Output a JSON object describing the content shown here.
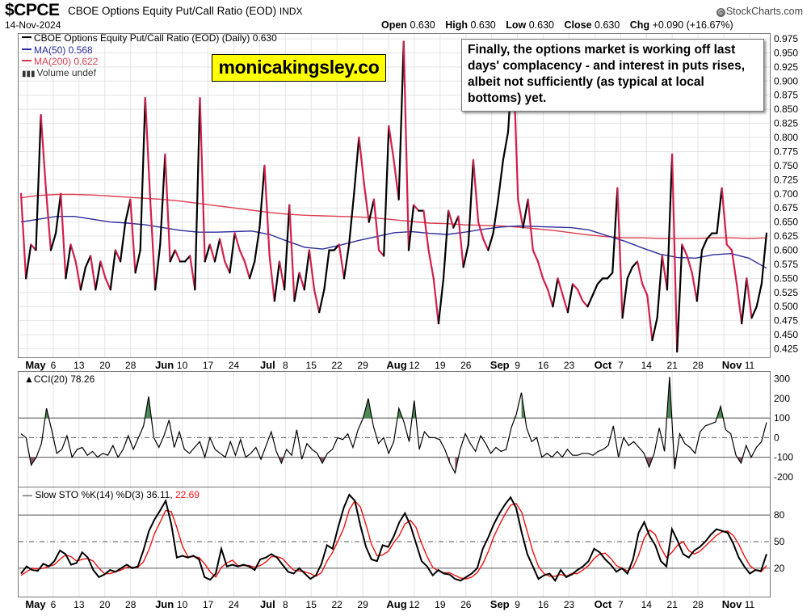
{
  "header": {
    "symbol": "$CPCE",
    "name": "CBOE Options Equity Put/Call Ratio (EOD)",
    "exchange": "INDX",
    "date": "14-Nov-2024",
    "open_label": "Open",
    "open": "0.630",
    "high_label": "High",
    "high": "0.630",
    "low_label": "Low",
    "low": "0.630",
    "close_label": "Close",
    "close": "0.630",
    "chg_label": "Chg",
    "chg": "+0.090 (+16.67%)",
    "brand": "StockCharts.com",
    "brand_mark": "©"
  },
  "legend": {
    "main": "CBOE Options Equity Put/Call Ratio (EOD) (Daily) 0.630",
    "ma50": "MA(50) 0.568",
    "ma200": "MA(200) 0.622",
    "volume": "Volume undef"
  },
  "watermark": "monicakingsley.co",
  "annotation": "Finally, the options market is working off last days' complacency - and interest in puts rises, albeit not sufficiently (as typical at local bottoms) yet.",
  "colors": {
    "up": "#000000",
    "down": "#d21e4b",
    "ma50": "#2d2d9b",
    "ma200": "#dc3c50",
    "fill_pos": "#4e8a58",
    "fill_neg": "#8b5a68",
    "d_line": "#ee1111"
  },
  "chart_data": [
    {
      "type": "line",
      "title": "CBOE Options Equity Put/Call Ratio (EOD) (Daily)",
      "ylim": [
        0.41,
        0.985
      ],
      "yticks": [
        "0.425",
        "0.450",
        "0.475",
        "0.500",
        "0.525",
        "0.550",
        "0.575",
        "0.600",
        "0.625",
        "0.650",
        "0.675",
        "0.700",
        "0.725",
        "0.750",
        "0.775",
        "0.800",
        "0.825",
        "0.850",
        "0.875",
        "0.900",
        "0.925",
        "0.950",
        "0.975"
      ],
      "x_labels": [
        "May",
        "6",
        "13",
        "20",
        "28",
        "Jun",
        "10",
        "17",
        "24",
        "Jul",
        "8",
        "15",
        "22",
        "29",
        "Aug",
        "12",
        "19",
        "26",
        "Sep",
        "9",
        "16",
        "23",
        "Oct",
        "7",
        "14",
        "21",
        "28",
        "Nov",
        "11"
      ],
      "values": [
        0.7,
        0.55,
        0.61,
        0.6,
        0.84,
        0.71,
        0.6,
        0.63,
        0.7,
        0.55,
        0.61,
        0.58,
        0.53,
        0.57,
        0.59,
        0.53,
        0.58,
        0.55,
        0.53,
        0.6,
        0.58,
        0.65,
        0.69,
        0.56,
        0.6,
        0.87,
        0.69,
        0.53,
        0.61,
        0.77,
        0.58,
        0.6,
        0.58,
        0.58,
        0.59,
        0.53,
        0.87,
        0.58,
        0.61,
        0.58,
        0.62,
        0.58,
        0.56,
        0.63,
        0.6,
        0.58,
        0.55,
        0.58,
        0.64,
        0.75,
        0.59,
        0.51,
        0.58,
        0.53,
        0.68,
        0.51,
        0.56,
        0.53,
        0.6,
        0.53,
        0.49,
        0.53,
        0.6,
        0.6,
        0.61,
        0.55,
        0.61,
        0.7,
        0.8,
        0.72,
        0.65,
        0.69,
        0.6,
        0.59,
        0.82,
        0.76,
        0.69,
        0.97,
        0.6,
        0.68,
        0.67,
        0.67,
        0.6,
        0.55,
        0.47,
        0.55,
        0.67,
        0.64,
        0.66,
        0.57,
        0.61,
        0.76,
        0.65,
        0.62,
        0.6,
        0.63,
        0.69,
        0.76,
        0.81,
        0.95,
        0.69,
        0.64,
        0.69,
        0.6,
        0.58,
        0.55,
        0.53,
        0.5,
        0.55,
        0.52,
        0.49,
        0.54,
        0.53,
        0.51,
        0.5,
        0.52,
        0.54,
        0.55,
        0.55,
        0.56,
        0.71,
        0.48,
        0.55,
        0.57,
        0.58,
        0.54,
        0.52,
        0.44,
        0.48,
        0.59,
        0.53,
        0.77,
        0.42,
        0.61,
        0.59,
        0.56,
        0.51,
        0.6,
        0.62,
        0.63,
        0.63,
        0.71,
        0.61,
        0.6,
        0.54,
        0.47,
        0.55,
        0.48,
        0.5,
        0.54,
        0.63
      ],
      "ma50": [
        0.65,
        0.655,
        0.66,
        0.66,
        0.655,
        0.65,
        0.648,
        0.645,
        0.64,
        0.635,
        0.632,
        0.632,
        0.633,
        0.634,
        0.628,
        0.616,
        0.605,
        0.602,
        0.609,
        0.617,
        0.624,
        0.631,
        0.633,
        0.63,
        0.628,
        0.632,
        0.637,
        0.641,
        0.643,
        0.642,
        0.641,
        0.64,
        0.636,
        0.626,
        0.616,
        0.604,
        0.593,
        0.587,
        0.586,
        0.592,
        0.594,
        0.586,
        0.568
      ],
      "ma200": [
        0.693,
        0.697,
        0.699,
        0.699,
        0.698,
        0.696,
        0.694,
        0.692,
        0.69,
        0.687,
        0.683,
        0.679,
        0.675,
        0.671,
        0.667,
        0.664,
        0.662,
        0.661,
        0.66,
        0.659,
        0.657,
        0.654,
        0.651,
        0.648,
        0.647,
        0.645,
        0.644,
        0.643,
        0.641,
        0.638,
        0.635,
        0.631,
        0.627,
        0.624,
        0.622,
        0.622,
        0.621,
        0.621,
        0.621,
        0.622,
        0.622,
        0.621,
        0.622
      ]
    },
    {
      "type": "line",
      "title": "CCI(20)",
      "label": "CCI(20) 78.26",
      "ylim": [
        -250,
        340
      ],
      "yticks": [
        "300",
        "200",
        "100",
        "0",
        "-100",
        "-200"
      ],
      "values": [
        20,
        0,
        -140,
        -100,
        -30,
        150,
        40,
        -80,
        -60,
        10,
        -100,
        -60,
        -50,
        -90,
        -70,
        -100,
        -80,
        -90,
        -40,
        -100,
        -60,
        10,
        -60,
        0,
        60,
        210,
        0,
        -50,
        10,
        90,
        -50,
        30,
        -60,
        -80,
        -50,
        -20,
        -100,
        0,
        -60,
        -80,
        -100,
        -20,
        -90,
        -10,
        -100,
        -80,
        -50,
        -110,
        -40,
        30,
        -70,
        -130,
        -60,
        -90,
        40,
        -110,
        -30,
        -60,
        -80,
        -130,
        -80,
        -60,
        0,
        -10,
        20,
        -50,
        40,
        100,
        200,
        60,
        -30,
        0,
        -80,
        -20,
        150,
        80,
        -20,
        190,
        -60,
        30,
        0,
        0,
        -10,
        -60,
        -130,
        -180,
        -60,
        20,
        -30,
        -70,
        10,
        -30,
        -80,
        -50,
        -70,
        -60,
        50,
        120,
        230,
        50,
        -20,
        0,
        -100,
        -80,
        -100,
        -70,
        -100,
        -60,
        -90,
        -90,
        -80,
        -80,
        -90,
        -70,
        -60,
        -40,
        60,
        -100,
        0,
        -40,
        -20,
        -50,
        -80,
        -150,
        -80,
        50,
        -70,
        310,
        -160,
        20,
        -30,
        -50,
        -80,
        30,
        60,
        70,
        80,
        160,
        40,
        20,
        -90,
        -130,
        -40,
        -100,
        -50,
        -20,
        78
      ],
      "hlines": [
        100,
        0,
        -100
      ]
    },
    {
      "type": "line",
      "title": "Slow STO %K(14) %D(3)",
      "label_prefix": "Slow STO %K(14) %D(3)",
      "k_value": "36.11",
      "d_value": "22.69",
      "ylim": [
        -12,
        112
      ],
      "yticks": [
        "80",
        "50",
        "20"
      ],
      "k": [
        14,
        22,
        18,
        17,
        25,
        22,
        28,
        40,
        36,
        24,
        26,
        38,
        32,
        18,
        10,
        13,
        18,
        16,
        20,
        24,
        20,
        22,
        40,
        62,
        75,
        85,
        96,
        70,
        32,
        34,
        32,
        34,
        30,
        10,
        7,
        14,
        42,
        22,
        24,
        22,
        24,
        22,
        18,
        30,
        32,
        36,
        32,
        24,
        16,
        14,
        20,
        14,
        8,
        12,
        25,
        46,
        42,
        66,
        88,
        103,
        96,
        68,
        44,
        30,
        28,
        46,
        44,
        56,
        72,
        82,
        68,
        48,
        28,
        22,
        12,
        18,
        14,
        13,
        8,
        6,
        10,
        14,
        20,
        42,
        55,
        70,
        82,
        92,
        100,
        88,
        60,
        36,
        22,
        8,
        12,
        14,
        6,
        18,
        10,
        13,
        18,
        22,
        28,
        42,
        38,
        30,
        24,
        16,
        20,
        14,
        30,
        60,
        72,
        56,
        46,
        28,
        22,
        64,
        51,
        36,
        32,
        40,
        44,
        50,
        58,
        64,
        62,
        60,
        48,
        32,
        22,
        14,
        18,
        17,
        36
      ],
      "d": [
        12,
        16,
        20,
        19,
        20,
        22,
        24,
        30,
        35,
        33,
        28,
        30,
        31,
        28,
        20,
        14,
        14,
        16,
        18,
        21,
        21,
        21,
        27,
        41,
        59,
        72,
        85,
        84,
        66,
        45,
        33,
        33,
        32,
        25,
        16,
        10,
        21,
        26,
        29,
        23,
        23,
        23,
        21,
        23,
        27,
        33,
        33,
        31,
        24,
        18,
        17,
        16,
        14,
        11,
        15,
        28,
        38,
        51,
        65,
        86,
        96,
        89,
        69,
        47,
        34,
        35,
        39,
        49,
        57,
        70,
        74,
        66,
        48,
        33,
        21,
        17,
        15,
        15,
        12,
        9,
        8,
        10,
        15,
        25,
        39,
        56,
        69,
        81,
        91,
        93,
        83,
        61,
        39,
        22,
        14,
        11,
        11,
        13,
        11,
        14,
        14,
        18,
        23,
        31,
        36,
        37,
        31,
        23,
        20,
        17,
        21,
        35,
        54,
        63,
        58,
        43,
        32,
        38,
        46,
        50,
        40,
        36,
        39,
        45,
        51,
        57,
        61,
        62,
        57,
        47,
        34,
        23,
        18,
        16,
        23
      ],
      "hlines": [
        80,
        50,
        20
      ]
    }
  ]
}
